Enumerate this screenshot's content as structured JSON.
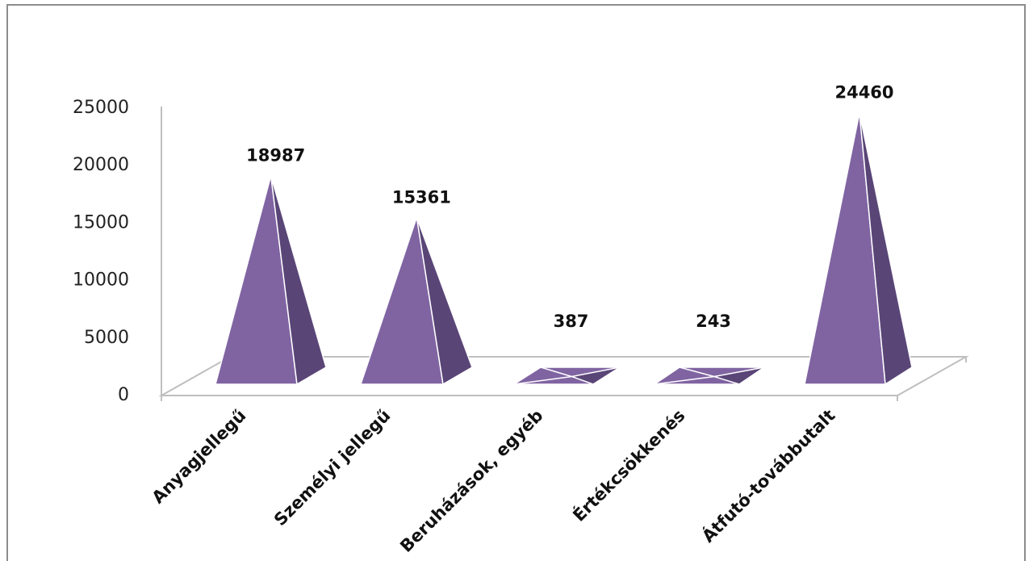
{
  "chart_data": {
    "type": "bar",
    "style": "3d-pyramid",
    "categories": [
      "Anyagjellegű",
      "Személyi jellegű",
      "Beruházások, egyéb",
      "Értékcsökkenés",
      "Átfutó-továbbutalt"
    ],
    "values": [
      18987,
      15361,
      387,
      243,
      24460
    ],
    "data_labels": [
      "18987",
      "15361",
      "387",
      "243",
      "24460"
    ],
    "yticks": [
      "0",
      "5000",
      "10000",
      "15000",
      "20000",
      "25000"
    ],
    "ylim": [
      0,
      25000
    ],
    "legend": "none",
    "grid": false,
    "colors": {
      "front": "#8064a2",
      "side": "#5a4577",
      "floor_line": "#bfbfbf",
      "frame": "#8c8c8c"
    }
  }
}
